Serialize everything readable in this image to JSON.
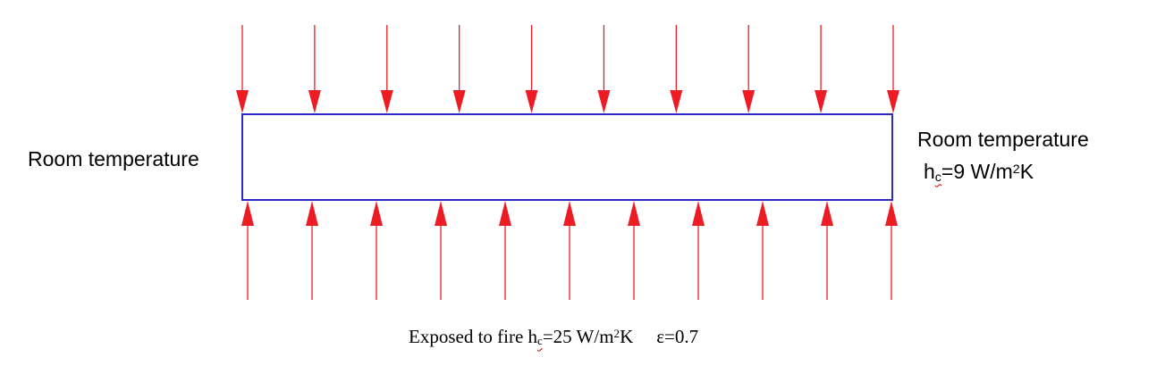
{
  "colors": {
    "arrow": "#ed1c24",
    "plate_border": "#2b2bc8",
    "text": "#000000"
  },
  "left_label": "Room temperature",
  "right_label": {
    "line1": "Room temperature",
    "coeff_symbol": "h",
    "coeff_subscript": "c",
    "coeff_value": "=9 W/m",
    "coeff_exp": "2",
    "coeff_unit": "K"
  },
  "bottom_label": {
    "prefix": "Exposed to fire ",
    "coeff_symbol": "h",
    "coeff_subscript": "c",
    "coeff_value": "=25 W/m",
    "coeff_exp": "2",
    "coeff_unit": "K",
    "emissivity": "ε=0.7"
  },
  "arrows": {
    "top_count": 10,
    "bottom_count": 11
  }
}
